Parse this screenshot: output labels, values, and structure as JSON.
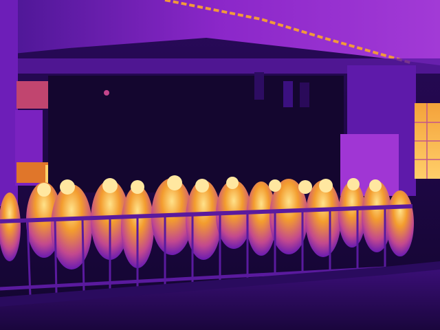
{
  "palette": {
    "cold": "#12052e",
    "cool": "#3a0b6e",
    "mid": "#8a1fc8",
    "warm": "#d14a8a",
    "hot": "#f28a2a",
    "hottest": "#ffe28a"
  }
}
